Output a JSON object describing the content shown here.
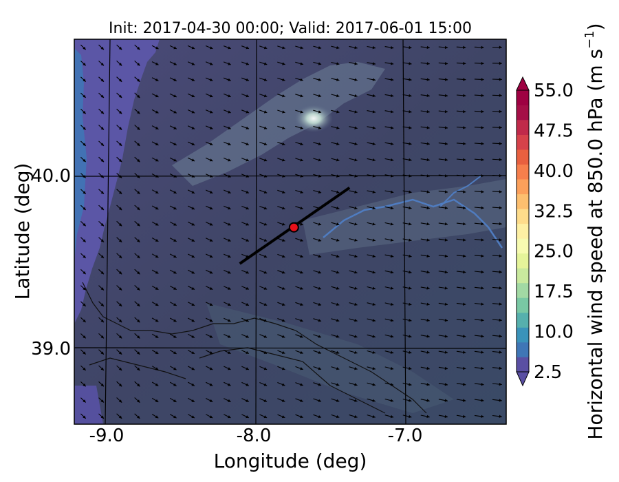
{
  "chart_data": {
    "type": "heatmap",
    "title": "Init: 2017-04-30 00:00; Valid: 2017-06-01 15:00",
    "xlabel": "Longitude (deg)",
    "ylabel": "Latitude (deg)",
    "xlim": [
      -9.25,
      -6.3
    ],
    "ylim": [
      38.55,
      40.78
    ],
    "x_ticks": [
      {
        "value": -9.0,
        "label": "-9.0"
      },
      {
        "value": -8.0,
        "label": "-8.0"
      },
      {
        "value": -7.0,
        "label": "-7.0"
      }
    ],
    "y_ticks": [
      {
        "value": 40.0,
        "label": "40.0"
      },
      {
        "value": 39.0,
        "label": "39.0"
      }
    ],
    "grid": true,
    "field": "horizontal wind speed at 850 hPa (filled contours with terrain shading)",
    "wind_vectors": {
      "direction": "from west-northwest toward east-southeast",
      "rows": 24,
      "cols": 24
    },
    "cross_section": {
      "start": [
        -8.12,
        39.48
      ],
      "end": [
        -7.37,
        39.92
      ]
    },
    "marker": {
      "lon": -7.75,
      "lat": 39.69,
      "color": "#e8101a"
    },
    "colorbar": {
      "label": "Horizontal wind speed at 850.0 hPa (m s",
      "label_exponent": "−1",
      "label_close": ")",
      "levels": [
        2.5,
        5.0,
        7.5,
        10.0,
        12.5,
        15.0,
        17.5,
        20.0,
        22.5,
        25.0,
        27.5,
        30.0,
        32.5,
        35.0,
        37.5,
        40.0,
        42.5,
        45.0,
        47.5,
        50.0,
        52.5,
        55.0
      ],
      "colors": [
        "#5a4fa3",
        "#3f76b6",
        "#3a93ba",
        "#56b0ad",
        "#79c8a4",
        "#a2d9a4",
        "#c9e99e",
        "#e5f49a",
        "#f7fbb1",
        "#fef0a4",
        "#fedc8b",
        "#fdbf6f",
        "#fca05b",
        "#f67f4c",
        "#e8603f",
        "#d6424a",
        "#c02a4a",
        "#a50f47",
        "#9e0142"
      ],
      "tick_labels": [
        "55.0",
        "47.5",
        "40.0",
        "32.5",
        "25.0",
        "17.5",
        "10.0",
        "2.5"
      ],
      "tick_values": [
        55.0,
        47.5,
        40.0,
        32.5,
        25.0,
        17.5,
        10.0,
        2.5
      ],
      "extend": "both"
    }
  }
}
